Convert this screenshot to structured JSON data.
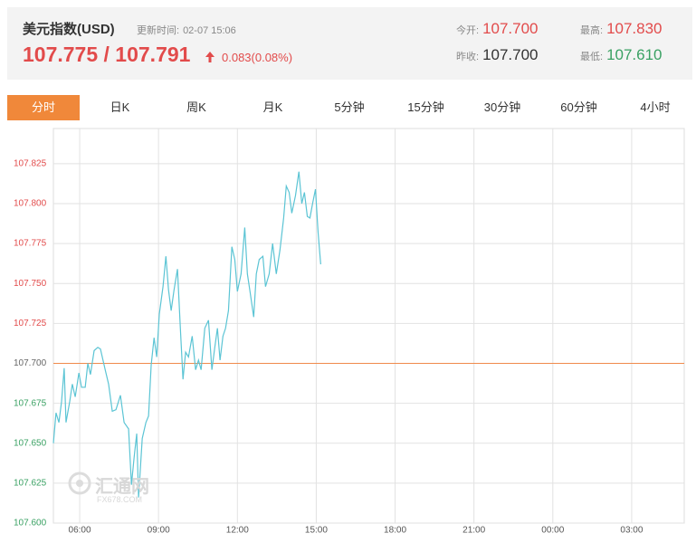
{
  "header": {
    "title": "美元指数(USD)",
    "update_label": "更新时间:",
    "update_time": "02-07 15:06",
    "price": "107.775 / 107.791",
    "change": "0.083(0.08%)",
    "stats": [
      {
        "label": "今开:",
        "value": "107.700"
      },
      {
        "label": "最高:",
        "value": "107.830"
      },
      {
        "label": "昨收:",
        "value": "107.700"
      },
      {
        "label": "最低:",
        "value": "107.610"
      }
    ]
  },
  "tabs": [
    "分时",
    "日K",
    "周K",
    "月K",
    "5分钟",
    "15分钟",
    "30分钟",
    "60分钟",
    "4小时"
  ],
  "watermark": {
    "name": "汇通网",
    "site": "FX678.COM"
  },
  "chart_data": {
    "type": "line",
    "color": "#5bc4d4",
    "baseline": 107.7,
    "baseline_color": "#f08a4b",
    "up_color": "#e24b4b",
    "down_color": "#3aa163",
    "grid": true,
    "x": [
      5.0,
      5.1,
      5.21,
      5.31,
      5.41,
      5.48,
      5.62,
      5.72,
      5.83,
      5.97,
      6.07,
      6.21,
      6.31,
      6.41,
      6.55,
      6.69,
      6.79,
      6.97,
      7.1,
      7.24,
      7.38,
      7.55,
      7.69,
      7.86,
      7.97,
      8.07,
      8.17,
      8.24,
      8.38,
      8.52,
      8.62,
      8.72,
      8.83,
      8.93,
      9.03,
      9.17,
      9.28,
      9.38,
      9.48,
      9.59,
      9.72,
      9.83,
      9.93,
      10.03,
      10.14,
      10.28,
      10.41,
      10.52,
      10.62,
      10.76,
      10.9,
      11.03,
      11.14,
      11.24,
      11.34,
      11.45,
      11.55,
      11.66,
      11.79,
      11.9,
      12.0,
      12.14,
      12.28,
      12.38,
      12.48,
      12.62,
      12.72,
      12.83,
      12.97,
      13.07,
      13.21,
      13.34,
      13.48,
      13.62,
      13.76,
      13.86,
      13.97,
      14.07,
      14.21,
      14.34,
      14.45,
      14.55,
      14.66,
      14.76,
      14.86,
      14.97,
      15.07,
      15.17
    ],
    "values": [
      107.65,
      107.669,
      107.663,
      107.676,
      107.697,
      107.663,
      107.676,
      107.687,
      107.679,
      107.694,
      107.685,
      107.685,
      107.7,
      107.693,
      107.708,
      107.71,
      107.709,
      107.696,
      107.687,
      107.67,
      107.671,
      107.68,
      107.663,
      107.659,
      107.624,
      107.641,
      107.656,
      107.616,
      107.653,
      107.663,
      107.667,
      107.699,
      107.716,
      107.704,
      107.731,
      107.748,
      107.767,
      107.746,
      107.733,
      107.746,
      107.759,
      107.722,
      107.69,
      107.707,
      107.704,
      107.717,
      107.696,
      107.702,
      107.696,
      107.722,
      107.727,
      107.696,
      107.71,
      107.722,
      107.702,
      107.717,
      107.722,
      107.733,
      107.773,
      107.765,
      107.745,
      107.756,
      107.785,
      107.756,
      107.745,
      107.729,
      107.756,
      107.765,
      107.767,
      107.748,
      107.756,
      107.775,
      107.756,
      107.771,
      107.791,
      107.811,
      107.807,
      107.794,
      107.805,
      107.82,
      107.8,
      107.807,
      107.792,
      107.791,
      107.8,
      107.809,
      107.782,
      107.762
    ],
    "xlim": [
      5,
      29
    ],
    "ylim": [
      107.6,
      107.847
    ],
    "xticks": [
      {
        "value": 6,
        "label": "06:00"
      },
      {
        "value": 9,
        "label": "09:00"
      },
      {
        "value": 12,
        "label": "12:00"
      },
      {
        "value": 15,
        "label": "15:00"
      },
      {
        "value": 18,
        "label": "18:00"
      },
      {
        "value": 21,
        "label": "21:00"
      },
      {
        "value": 24,
        "label": "00:00"
      },
      {
        "value": 27,
        "label": "03:00"
      }
    ],
    "yticks": [
      {
        "value": 107.6,
        "label": "107.600"
      },
      107.625,
      {
        "value": 107.65,
        "label": "107.650"
      },
      107.675,
      {
        "value": 107.7,
        "label": "107.700"
      },
      107.725,
      {
        "value": 107.75,
        "label": "107.750"
      },
      107.775,
      {
        "value": 107.8,
        "label": "107.800"
      },
      107.825
    ]
  }
}
